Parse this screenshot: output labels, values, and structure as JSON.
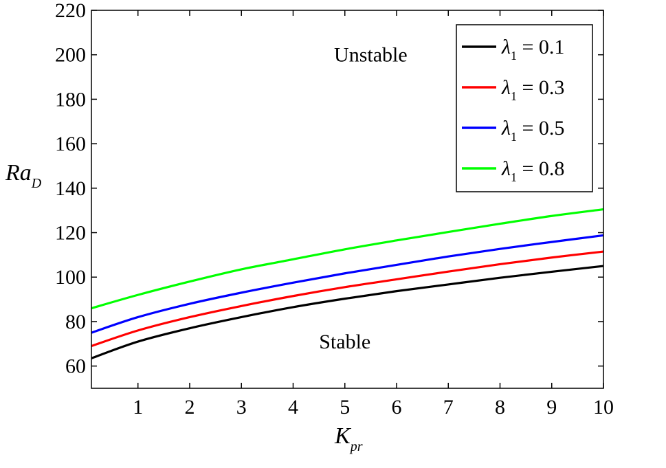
{
  "chart_data": {
    "type": "line",
    "xlabel": {
      "main": "K",
      "sub": "pr"
    },
    "ylabel": {
      "main": "Ra",
      "sub": "D"
    },
    "xlim": [
      0.1,
      10
    ],
    "ylim": [
      50,
      220
    ],
    "xticks": [
      1,
      2,
      3,
      4,
      5,
      6,
      7,
      8,
      9,
      10
    ],
    "yticks": [
      60,
      80,
      100,
      120,
      140,
      160,
      180,
      200,
      220
    ],
    "grid": false,
    "legend_position": "top-right",
    "annotations": [
      {
        "text": "Unstable",
        "x": 5.5,
        "y": 200
      },
      {
        "text": "Stable",
        "x": 5.0,
        "y": 71
      }
    ],
    "x": [
      0.1,
      1,
      2,
      3,
      4,
      5,
      6,
      7,
      8,
      9,
      10
    ],
    "series": [
      {
        "name": "λ1 = 0.1",
        "legend": {
          "symbol": "λ",
          "sub": "1",
          "rest": " = 0.1"
        },
        "color": "#000000",
        "values": [
          63.5,
          71.0,
          77.0,
          82.0,
          86.5,
          90.3,
          93.7,
          96.7,
          99.7,
          102.4,
          105.0
        ]
      },
      {
        "name": "λ1 = 0.3",
        "legend": {
          "symbol": "λ",
          "sub": "1",
          "rest": " = 0.3"
        },
        "color": "#ff0000",
        "values": [
          69.0,
          76.0,
          82.0,
          87.0,
          91.5,
          95.5,
          99.0,
          102.5,
          105.8,
          108.8,
          111.5
        ]
      },
      {
        "name": "λ1 = 0.5",
        "legend": {
          "symbol": "λ",
          "sub": "1",
          "rest": " = 0.5"
        },
        "color": "#0000ff",
        "values": [
          75.0,
          82.0,
          88.0,
          93.0,
          97.5,
          101.7,
          105.5,
          109.3,
          112.7,
          115.8,
          118.8
        ]
      },
      {
        "name": "λ1 = 0.8",
        "legend": {
          "symbol": "λ",
          "sub": "1",
          "rest": " = 0.8"
        },
        "color": "#00ff00",
        "values": [
          86.0,
          92.0,
          98.0,
          103.5,
          108.0,
          112.5,
          116.5,
          120.3,
          124.0,
          127.5,
          130.5
        ]
      }
    ]
  }
}
